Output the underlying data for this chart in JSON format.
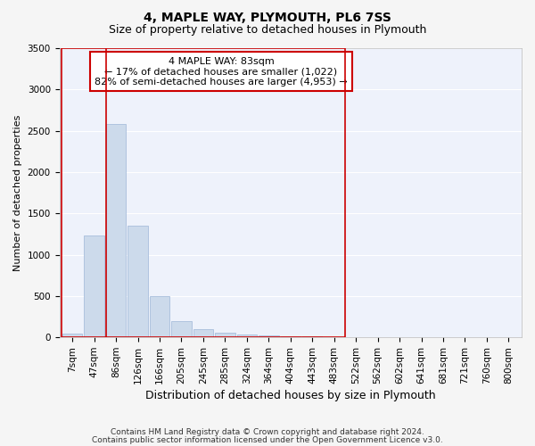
{
  "title1": "4, MAPLE WAY, PLYMOUTH, PL6 7SS",
  "title2": "Size of property relative to detached houses in Plymouth",
  "xlabel": "Distribution of detached houses by size in Plymouth",
  "ylabel": "Number of detached properties",
  "footer1": "Contains HM Land Registry data © Crown copyright and database right 2024.",
  "footer2": "Contains public sector information licensed under the Open Government Licence v3.0.",
  "annotation_title": "4 MAPLE WAY: 83sqm",
  "annotation_line1": "← 17% of detached houses are smaller (1,022)",
  "annotation_line2": "82% of semi-detached houses are larger (4,953) →",
  "property_sqm": 83,
  "bar_labels": [
    "7sqm",
    "47sqm",
    "86sqm",
    "126sqm",
    "166sqm",
    "205sqm",
    "245sqm",
    "285sqm",
    "324sqm",
    "364sqm",
    "404sqm",
    "443sqm",
    "483sqm",
    "522sqm",
    "562sqm",
    "602sqm",
    "641sqm",
    "681sqm",
    "721sqm",
    "760sqm",
    "800sqm"
  ],
  "bar_values": [
    50,
    1230,
    2580,
    1350,
    500,
    200,
    100,
    60,
    40,
    25,
    15,
    8,
    5,
    2,
    1,
    1,
    1,
    1,
    1,
    1,
    1
  ],
  "bar_color": "#ccdaeb",
  "bar_edge_color": "#a8bedc",
  "red_line_color": "#cc0000",
  "annotation_box_color": "#ffffff",
  "annotation_box_edge": "#cc0000",
  "background_color": "#eef2fb",
  "plot_box_edge": "#cc0000",
  "ylim": [
    0,
    3500
  ],
  "yticks": [
    0,
    500,
    1000,
    1500,
    2000,
    2500,
    3000,
    3500
  ],
  "grid_color": "#ffffff",
  "title1_fontsize": 10,
  "title2_fontsize": 9,
  "xlabel_fontsize": 9,
  "ylabel_fontsize": 8,
  "footer_fontsize": 6.5,
  "tick_fontsize": 7.5,
  "annotation_fontsize": 8
}
